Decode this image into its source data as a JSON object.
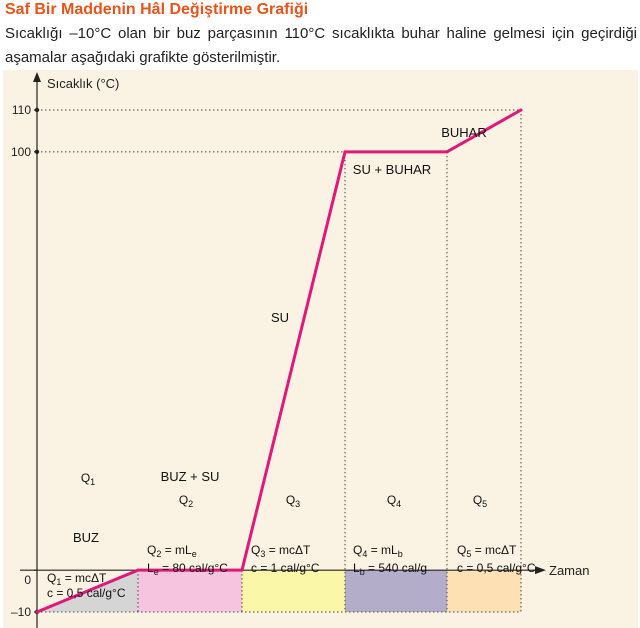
{
  "header": {
    "title": "Saf Bir Maddenin Hâl Değiştirme Grafiği",
    "description": "Sıcaklığı –10°C olan bir buz parçasının 110°C sıcaklıkta buhar haline gelmesi için geçirdiği aşamalar aşağıdaki grafikte gösterilmiştir."
  },
  "colors": {
    "title": "#e8541a",
    "background": "#faf3e3",
    "line": "#e0187a",
    "buz_fill": "#d5d5d5",
    "q2_fill": "#f6c4df",
    "q3_fill": "#fbf7a8",
    "q4_fill": "#b3adc9",
    "q5_fill": "#fde0b3"
  },
  "chart_data": {
    "type": "line",
    "ylabel": "Sıcaklık (°C)",
    "xlabel": "Zaman",
    "ylim": [
      -10,
      110
    ],
    "yticks": [
      {
        "value": 110,
        "label": "110"
      },
      {
        "value": 100,
        "label": "100"
      },
      {
        "value": 0,
        "label": "0"
      },
      {
        "value": -10,
        "label": "–10"
      }
    ],
    "series": [
      {
        "values": [
          -10,
          0,
          0,
          100,
          100,
          110
        ]
      }
    ],
    "phase_labels": [
      "BUZ",
      "BUZ + SU",
      "SU",
      "SU + BUHAR",
      "BUHAR"
    ],
    "regions": [
      {
        "q": "Q",
        "sub": "1",
        "f1": "Q",
        "f1s": "1",
        "f1r": " = mcΔT",
        "f2": "c = 0,5 cal/g°C",
        "f2s": "",
        "f2r": ""
      },
      {
        "q": "Q",
        "sub": "2",
        "f1": "Q",
        "f1s": "2",
        "f1r": " = mL",
        "f1rs": "e",
        "f2": "L",
        "f2s": "e",
        "f2r": " = 80 cal/g°C"
      },
      {
        "q": "Q",
        "sub": "3",
        "f1": "Q",
        "f1s": "3",
        "f1r": " = mcΔT",
        "f2": "c = 1 cal/g°C",
        "f2s": "",
        "f2r": ""
      },
      {
        "q": "Q",
        "sub": "4",
        "f1": "Q",
        "f1s": "4",
        "f1r": " = mL",
        "f1rs": "b",
        "f2": "L",
        "f2s": "b",
        "f2r": " = 540 cal/g"
      },
      {
        "q": "Q",
        "sub": "5",
        "f1": "Q",
        "f1s": "5",
        "f1r": " = mcΔT",
        "f2": "c = 0,5 cal/g°C",
        "f2s": "",
        "f2r": ""
      }
    ]
  }
}
